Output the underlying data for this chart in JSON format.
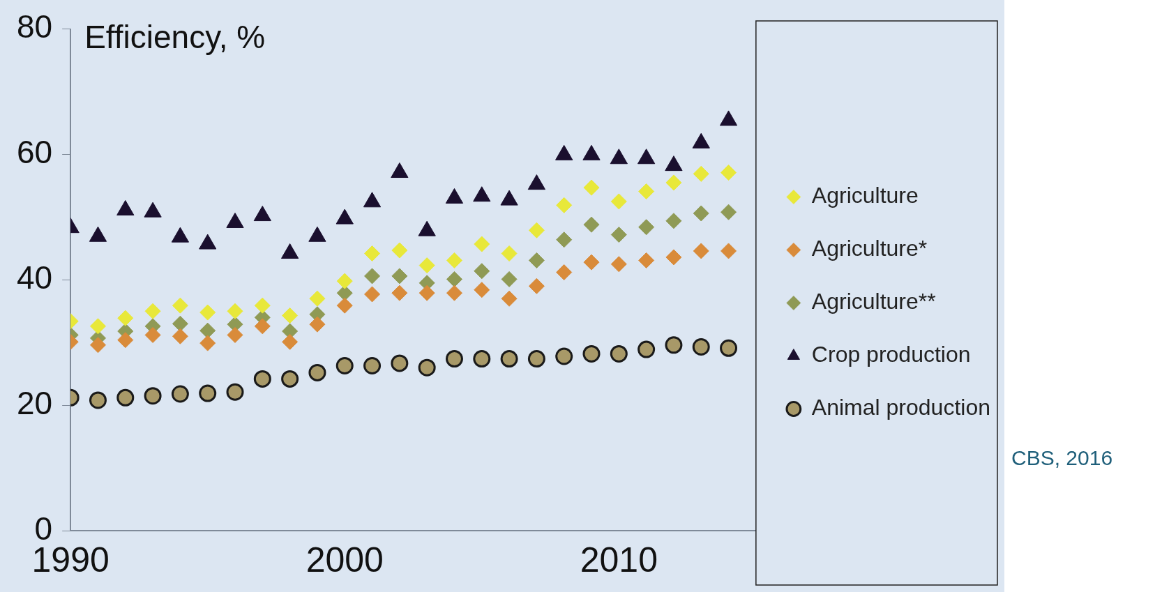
{
  "chart_data": {
    "type": "scatter",
    "ylabel": "Efficiency, %",
    "x": [
      1990,
      1991,
      1992,
      1993,
      1994,
      1995,
      1996,
      1997,
      1998,
      1999,
      2000,
      2001,
      2002,
      2003,
      2004,
      2005,
      2006,
      2007,
      2008,
      2009,
      2010,
      2011,
      2012,
      2013,
      2014
    ],
    "xlim": [
      1990,
      2015
    ],
    "xticks": [
      1990,
      2000,
      2010
    ],
    "ylim": [
      0,
      80
    ],
    "yticks": [
      0,
      20,
      40,
      60,
      80
    ],
    "grid": false,
    "legend": "right",
    "series": [
      {
        "name": "Agriculture",
        "color": "#e8e83a",
        "marker": "diamond",
        "values": [
          33.4,
          32.6,
          33.9,
          35.0,
          35.9,
          34.8,
          35.0,
          35.9,
          34.3,
          37.0,
          39.8,
          44.2,
          44.7,
          42.3,
          43.1,
          45.7,
          44.2,
          47.9,
          51.9,
          54.7,
          52.5,
          54.1,
          55.5,
          56.9,
          57.1
        ]
      },
      {
        "name": "Agriculture*",
        "color": "#d98b3a",
        "marker": "diamond",
        "values": [
          30.1,
          29.6,
          30.4,
          31.2,
          31.0,
          29.9,
          31.2,
          32.6,
          30.1,
          32.9,
          35.9,
          37.7,
          37.9,
          37.9,
          37.9,
          38.4,
          37.0,
          39.0,
          41.2,
          42.8,
          42.5,
          43.1,
          43.6,
          44.6,
          44.6
        ]
      },
      {
        "name": "Agriculture**",
        "color": "#8f9a55",
        "marker": "diamond",
        "values": [
          31.2,
          30.7,
          31.8,
          32.6,
          33.0,
          31.9,
          32.9,
          34.0,
          31.8,
          34.5,
          37.9,
          40.6,
          40.6,
          39.5,
          40.1,
          41.4,
          40.1,
          43.1,
          46.4,
          48.8,
          47.2,
          48.4,
          49.4,
          50.6,
          50.8
        ]
      },
      {
        "name": "Crop production",
        "color": "#1a0f2e",
        "marker": "triangle",
        "values": [
          48.3,
          46.9,
          51.1,
          50.8,
          46.8,
          45.7,
          49.1,
          50.2,
          44.2,
          46.9,
          49.7,
          52.4,
          57.1,
          47.8,
          53.0,
          53.3,
          52.7,
          55.2,
          59.9,
          59.9,
          59.3,
          59.3,
          58.2,
          61.8,
          65.4
        ]
      },
      {
        "name": "Animal production",
        "color": "#a89968",
        "marker": "circle",
        "values": [
          21.2,
          20.8,
          21.2,
          21.5,
          21.8,
          21.9,
          22.1,
          24.2,
          24.2,
          25.2,
          26.3,
          26.3,
          26.7,
          26.0,
          27.4,
          27.4,
          27.4,
          27.4,
          27.8,
          28.2,
          28.2,
          28.9,
          29.6,
          29.3,
          29.1
        ]
      }
    ],
    "annotations": [
      "CBS, 2016"
    ]
  }
}
